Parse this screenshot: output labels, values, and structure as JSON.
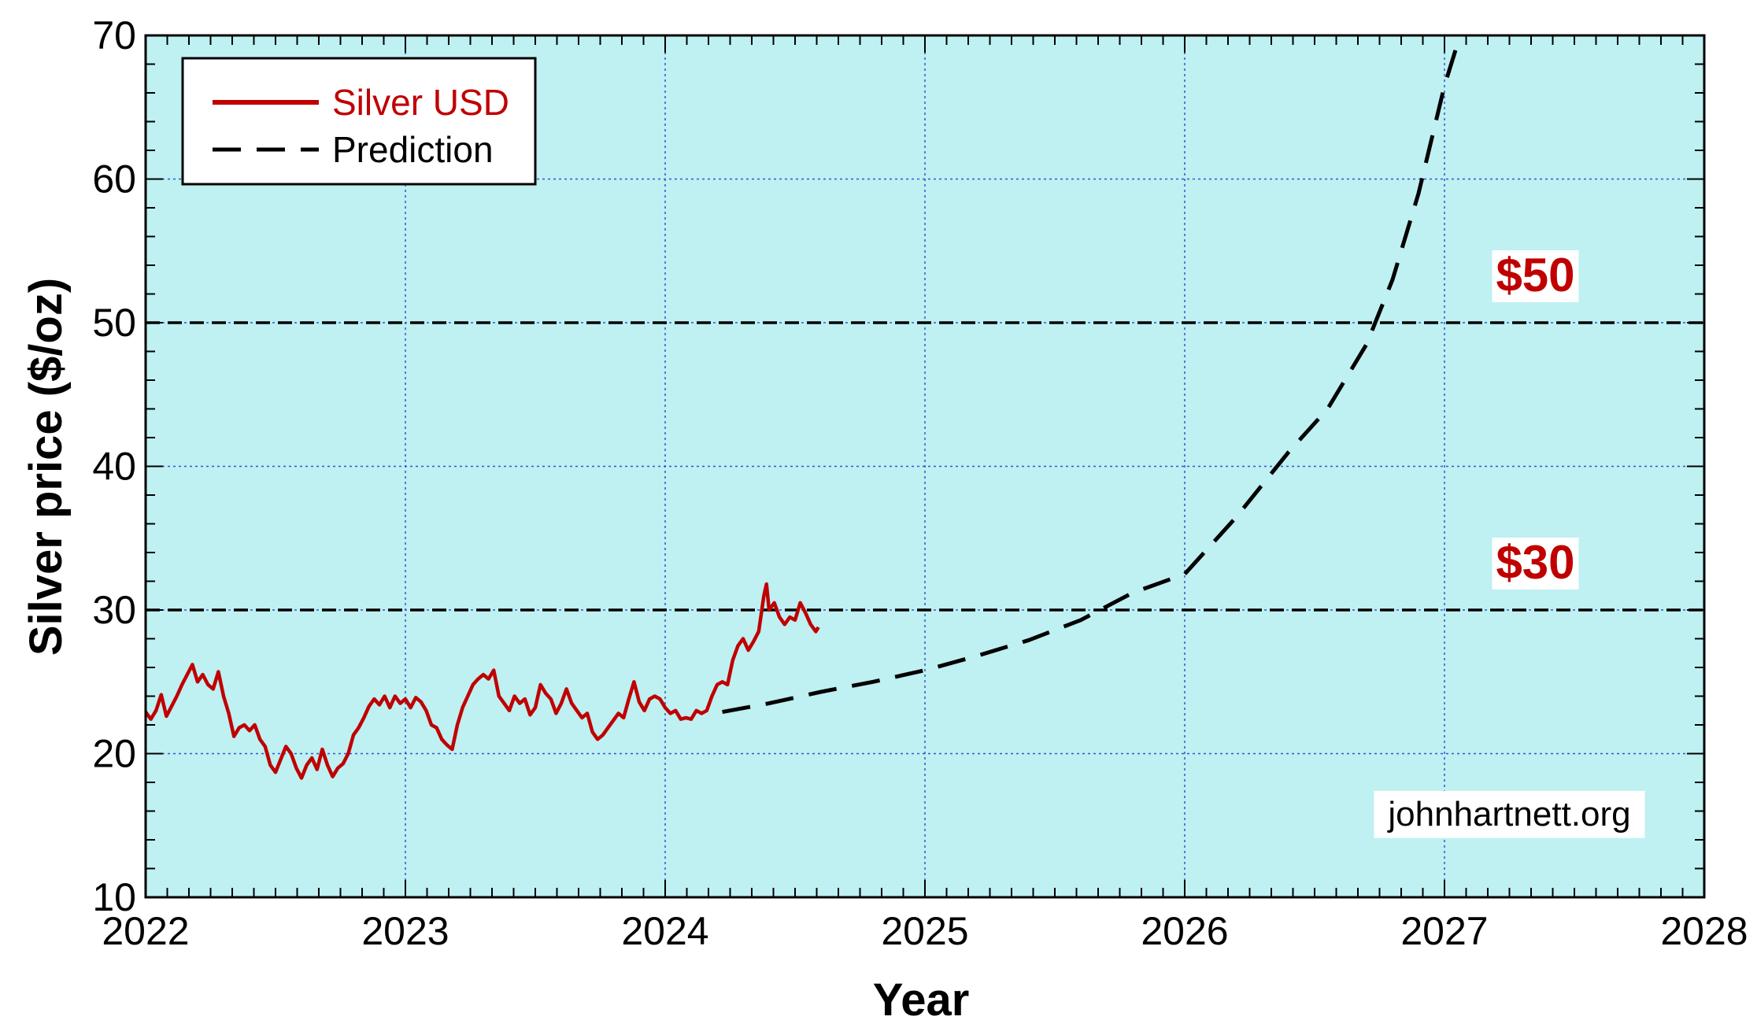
{
  "chart_data": {
    "type": "line",
    "xlabel": "Year",
    "ylabel": "Silver price ($/oz)",
    "xlim": [
      2022,
      2028
    ],
    "ylim": [
      10,
      70
    ],
    "x_ticks": [
      2022,
      2023,
      2024,
      2025,
      2026,
      2027,
      2028
    ],
    "y_ticks": [
      10,
      20,
      30,
      40,
      50,
      60,
      70
    ],
    "grid": true,
    "legend_position": "top-left",
    "colors": {
      "plot_background": "#bff0f2",
      "silver": "#c00000",
      "prediction": "#000000",
      "grid": "#3355cc",
      "annotation": "#c00000"
    },
    "series": [
      {
        "name": "Silver USD",
        "style": "solid",
        "points": [
          [
            2022.0,
            22.9
          ],
          [
            2022.02,
            22.4
          ],
          [
            2022.04,
            23.0
          ],
          [
            2022.06,
            24.1
          ],
          [
            2022.08,
            22.6
          ],
          [
            2022.1,
            23.3
          ],
          [
            2022.12,
            24.0
          ],
          [
            2022.14,
            24.8
          ],
          [
            2022.16,
            25.5
          ],
          [
            2022.18,
            26.2
          ],
          [
            2022.2,
            25.0
          ],
          [
            2022.22,
            25.5
          ],
          [
            2022.24,
            24.8
          ],
          [
            2022.26,
            24.5
          ],
          [
            2022.28,
            25.7
          ],
          [
            2022.3,
            24.0
          ],
          [
            2022.32,
            22.8
          ],
          [
            2022.34,
            21.2
          ],
          [
            2022.36,
            21.8
          ],
          [
            2022.38,
            22.0
          ],
          [
            2022.4,
            21.6
          ],
          [
            2022.42,
            22.0
          ],
          [
            2022.44,
            21.0
          ],
          [
            2022.46,
            20.5
          ],
          [
            2022.48,
            19.2
          ],
          [
            2022.5,
            18.7
          ],
          [
            2022.52,
            19.6
          ],
          [
            2022.54,
            20.5
          ],
          [
            2022.56,
            20.0
          ],
          [
            2022.58,
            19.0
          ],
          [
            2022.6,
            18.3
          ],
          [
            2022.62,
            19.2
          ],
          [
            2022.64,
            19.7
          ],
          [
            2022.66,
            18.9
          ],
          [
            2022.68,
            20.3
          ],
          [
            2022.7,
            19.2
          ],
          [
            2022.72,
            18.4
          ],
          [
            2022.74,
            19.0
          ],
          [
            2022.76,
            19.3
          ],
          [
            2022.78,
            20.0
          ],
          [
            2022.8,
            21.3
          ],
          [
            2022.82,
            21.8
          ],
          [
            2022.84,
            22.5
          ],
          [
            2022.86,
            23.3
          ],
          [
            2022.88,
            23.8
          ],
          [
            2022.9,
            23.4
          ],
          [
            2022.92,
            24.0
          ],
          [
            2022.94,
            23.2
          ],
          [
            2022.96,
            24.0
          ],
          [
            2022.98,
            23.5
          ],
          [
            2023.0,
            23.8
          ],
          [
            2023.02,
            23.2
          ],
          [
            2023.04,
            23.9
          ],
          [
            2023.06,
            23.6
          ],
          [
            2023.08,
            23.0
          ],
          [
            2023.1,
            22.0
          ],
          [
            2023.12,
            21.8
          ],
          [
            2023.14,
            21.0
          ],
          [
            2023.16,
            20.6
          ],
          [
            2023.18,
            20.3
          ],
          [
            2023.2,
            22.0
          ],
          [
            2023.22,
            23.2
          ],
          [
            2023.24,
            24.0
          ],
          [
            2023.26,
            24.8
          ],
          [
            2023.28,
            25.2
          ],
          [
            2023.3,
            25.5
          ],
          [
            2023.32,
            25.2
          ],
          [
            2023.34,
            25.8
          ],
          [
            2023.36,
            24.0
          ],
          [
            2023.38,
            23.5
          ],
          [
            2023.4,
            23.0
          ],
          [
            2023.42,
            24.0
          ],
          [
            2023.44,
            23.5
          ],
          [
            2023.46,
            23.8
          ],
          [
            2023.48,
            22.7
          ],
          [
            2023.5,
            23.2
          ],
          [
            2023.52,
            24.8
          ],
          [
            2023.54,
            24.2
          ],
          [
            2023.56,
            23.8
          ],
          [
            2023.58,
            22.8
          ],
          [
            2023.6,
            23.5
          ],
          [
            2023.62,
            24.5
          ],
          [
            2023.64,
            23.5
          ],
          [
            2023.66,
            23.0
          ],
          [
            2023.68,
            22.5
          ],
          [
            2023.7,
            22.8
          ],
          [
            2023.72,
            21.5
          ],
          [
            2023.74,
            21.0
          ],
          [
            2023.76,
            21.3
          ],
          [
            2023.78,
            21.8
          ],
          [
            2023.8,
            22.3
          ],
          [
            2023.82,
            22.8
          ],
          [
            2023.84,
            22.5
          ],
          [
            2023.86,
            23.8
          ],
          [
            2023.88,
            25.0
          ],
          [
            2023.9,
            23.6
          ],
          [
            2023.92,
            23.0
          ],
          [
            2023.94,
            23.8
          ],
          [
            2023.96,
            24.0
          ],
          [
            2023.98,
            23.8
          ],
          [
            2024.0,
            23.2
          ],
          [
            2024.02,
            22.8
          ],
          [
            2024.04,
            23.0
          ],
          [
            2024.06,
            22.4
          ],
          [
            2024.08,
            22.5
          ],
          [
            2024.1,
            22.4
          ],
          [
            2024.12,
            23.0
          ],
          [
            2024.14,
            22.8
          ],
          [
            2024.16,
            23.0
          ],
          [
            2024.18,
            24.0
          ],
          [
            2024.2,
            24.8
          ],
          [
            2024.22,
            25.0
          ],
          [
            2024.24,
            24.8
          ],
          [
            2024.26,
            26.5
          ],
          [
            2024.28,
            27.5
          ],
          [
            2024.3,
            28.0
          ],
          [
            2024.32,
            27.2
          ],
          [
            2024.34,
            27.8
          ],
          [
            2024.36,
            28.5
          ],
          [
            2024.38,
            31.0
          ],
          [
            2024.39,
            31.8
          ],
          [
            2024.4,
            30.0
          ],
          [
            2024.42,
            30.5
          ],
          [
            2024.44,
            29.5
          ],
          [
            2024.46,
            29.0
          ],
          [
            2024.48,
            29.5
          ],
          [
            2024.5,
            29.3
          ],
          [
            2024.52,
            30.5
          ],
          [
            2024.54,
            29.8
          ],
          [
            2024.56,
            29.0
          ],
          [
            2024.58,
            28.5
          ],
          [
            2024.59,
            28.8
          ]
        ]
      },
      {
        "name": "Prediction",
        "style": "dashed",
        "points": [
          [
            2024.22,
            22.9
          ],
          [
            2024.4,
            23.5
          ],
          [
            2024.6,
            24.3
          ],
          [
            2024.8,
            25.0
          ],
          [
            2025.0,
            25.8
          ],
          [
            2025.2,
            26.8
          ],
          [
            2025.4,
            27.9
          ],
          [
            2025.6,
            29.3
          ],
          [
            2025.8,
            31.2
          ],
          [
            2026.0,
            32.5
          ],
          [
            2026.2,
            36.5
          ],
          [
            2026.4,
            41.0
          ],
          [
            2026.55,
            44.0
          ],
          [
            2026.7,
            48.5
          ],
          [
            2026.8,
            53.0
          ],
          [
            2026.9,
            59.0
          ],
          [
            2027.0,
            66.5
          ],
          [
            2027.06,
            70.0
          ]
        ]
      }
    ],
    "reference_lines": [
      {
        "y": 50,
        "label": "$50"
      },
      {
        "y": 30,
        "label": "$30"
      }
    ],
    "annotations": {
      "watermark": "johnhartnett.org"
    }
  }
}
